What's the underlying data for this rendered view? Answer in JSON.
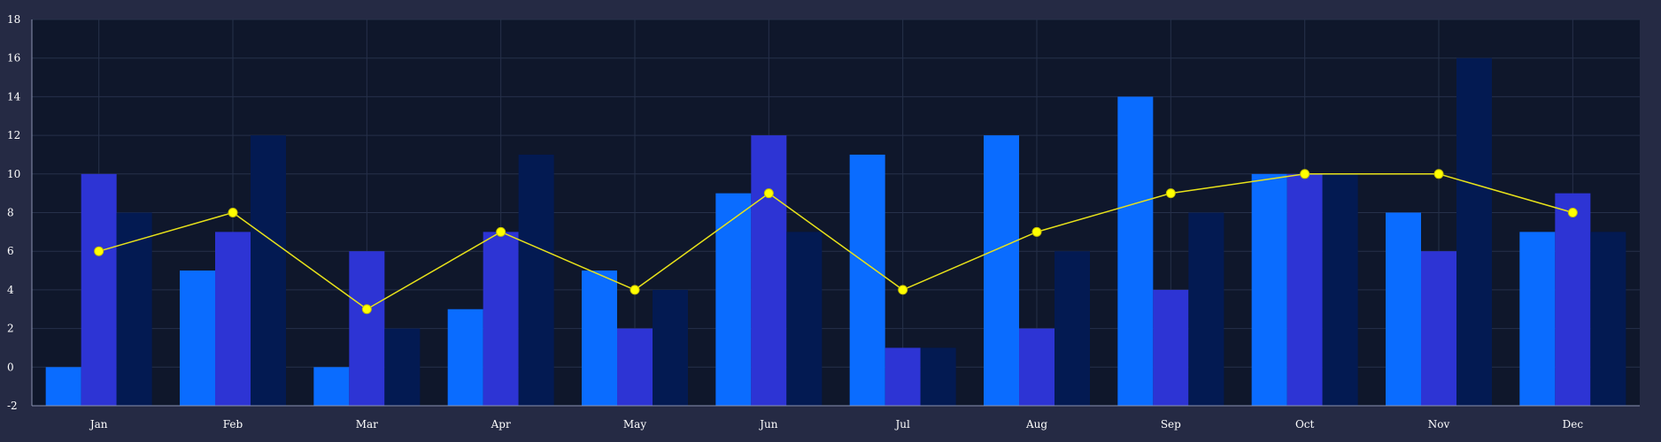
{
  "chart_data": {
    "type": "bar",
    "categories": [
      "Jan",
      "Feb",
      "Mar",
      "Apr",
      "May",
      "Jun",
      "Jul",
      "Aug",
      "Sep",
      "Oct",
      "Nov",
      "Dec"
    ],
    "series": [
      {
        "type": "bar",
        "color": "#0a6cff",
        "values": [
          0,
          5,
          0,
          3,
          5,
          9,
          11,
          12,
          14,
          10,
          8,
          7
        ]
      },
      {
        "type": "bar",
        "color": "#2d34d4",
        "values": [
          10,
          7,
          6,
          7,
          2,
          12,
          1,
          2,
          4,
          10,
          6,
          9
        ]
      },
      {
        "type": "bar",
        "color": "#031a52",
        "values": [
          8,
          12,
          2,
          11,
          4,
          7,
          1,
          6,
          8,
          10,
          16,
          7
        ]
      },
      {
        "type": "line",
        "color": "#e8e21a",
        "marker_color": "#ffff00",
        "values": [
          6,
          8,
          3,
          7,
          4,
          9,
          4,
          7,
          9,
          10,
          10,
          8
        ]
      }
    ],
    "ylim": [
      -2,
      18
    ],
    "yticks": [
      "-2",
      "0",
      "2",
      "4",
      "6",
      "8",
      "10",
      "12",
      "14",
      "16",
      "18"
    ],
    "grid": true,
    "title": "",
    "xlabel": "",
    "ylabel": "",
    "colors": {
      "background": "#252a44",
      "plot_background": "#0f172b",
      "grid": "#26304a",
      "axis": "#8a93b0",
      "text": "#ffffff"
    }
  }
}
